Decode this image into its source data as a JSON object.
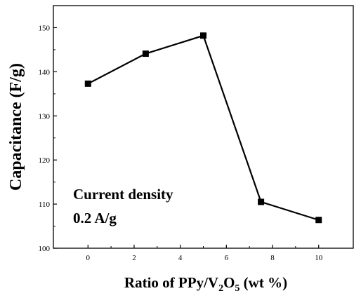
{
  "chart_data": {
    "type": "line",
    "x": [
      0,
      2.5,
      5,
      7.5,
      10
    ],
    "series": [
      {
        "values": [
          137.3,
          144.1,
          148.2,
          110.5,
          106.4
        ]
      }
    ],
    "xlabel": {
      "prefix": "Ratio of PPy/V",
      "sub1": "2",
      "mid": "O",
      "sub2": "5",
      "suffix": " (wt %)"
    },
    "ylabel": "Capacitance (F/g)",
    "xlim": [
      -1.5,
      11.5
    ],
    "ylim": [
      100,
      155
    ],
    "xticks": [
      0,
      2,
      4,
      6,
      8,
      10
    ],
    "yticks": [
      100,
      110,
      120,
      130,
      140,
      150
    ],
    "annotation": [
      "Current density",
      "0.2 A/g"
    ],
    "grid": false,
    "marker": "square",
    "color": "#000000"
  }
}
